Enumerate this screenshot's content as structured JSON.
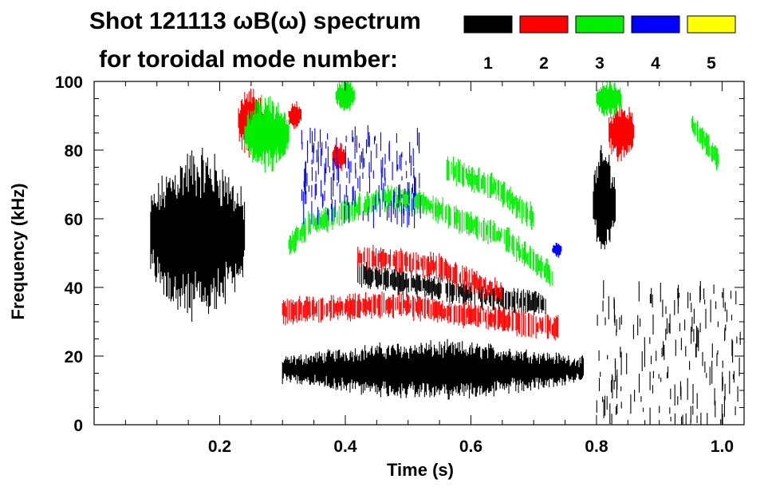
{
  "chart_data": {
    "type": "heatmap",
    "title_line1": "Shot 121113 ωB(ω) spectrum",
    "title_line2": "for toroidal mode number:",
    "xlabel": "Time (s)",
    "ylabel": "Frequency (kHz)",
    "xlim": [
      0.0,
      1.035
    ],
    "ylim": [
      0,
      100
    ],
    "x_ticks": [
      0.2,
      0.4,
      0.6,
      0.8,
      1.0
    ],
    "x_tick_labels": [
      "0.2",
      "0.4",
      "0.6",
      "0.8",
      "1.0"
    ],
    "y_ticks": [
      0,
      20,
      40,
      60,
      80,
      100
    ],
    "y_tick_labels": [
      "0",
      "20",
      "40",
      "60",
      "80",
      "100"
    ],
    "legend": [
      {
        "label": "1",
        "color": "#000000"
      },
      {
        "label": "2",
        "color": "#ff0000"
      },
      {
        "label": "3",
        "color": "#00ee00"
      },
      {
        "label": "4",
        "color": "#0000ff"
      },
      {
        "label": "5",
        "color": "#ffff00"
      }
    ],
    "features": [
      {
        "mode": "1",
        "kind": "blob",
        "t": [
          0.09,
          0.24
        ],
        "f_center": 55,
        "f_halfwidth": 22
      },
      {
        "mode": "1",
        "kind": "blob",
        "t": [
          0.3,
          0.78
        ],
        "f_center": 16,
        "f_halfwidth": 7
      },
      {
        "mode": "1",
        "kind": "band",
        "points": [
          [
            0.42,
            44
          ],
          [
            0.6,
            38
          ],
          [
            0.72,
            35
          ]
        ]
      },
      {
        "mode": "1",
        "kind": "blob",
        "t": [
          0.795,
          0.83
        ],
        "f_center": 65,
        "f_halfwidth": 14
      },
      {
        "mode": "1",
        "kind": "scatter",
        "t": [
          0.8,
          1.03
        ],
        "f": [
          0,
          40
        ]
      },
      {
        "mode": "2",
        "kind": "band",
        "points": [
          [
            0.42,
            49
          ],
          [
            0.55,
            46
          ],
          [
            0.65,
            38
          ]
        ]
      },
      {
        "mode": "2",
        "kind": "band",
        "points": [
          [
            0.3,
            33
          ],
          [
            0.48,
            35
          ],
          [
            0.6,
            32
          ],
          [
            0.74,
            28
          ]
        ]
      },
      {
        "mode": "2",
        "kind": "blob",
        "t": [
          0.23,
          0.27
        ],
        "f_center": 88,
        "f_halfwidth": 10
      },
      {
        "mode": "2",
        "kind": "blob",
        "t": [
          0.31,
          0.33
        ],
        "f_center": 90,
        "f_halfwidth": 4
      },
      {
        "mode": "2",
        "kind": "blob",
        "t": [
          0.38,
          0.4
        ],
        "f_center": 78,
        "f_halfwidth": 4
      },
      {
        "mode": "2",
        "kind": "blob",
        "t": [
          0.82,
          0.86
        ],
        "f_center": 85,
        "f_halfwidth": 8
      },
      {
        "mode": "3",
        "kind": "band",
        "points": [
          [
            0.31,
            52
          ],
          [
            0.34,
            58
          ],
          [
            0.46,
            66
          ],
          [
            0.52,
            65
          ],
          [
            0.58,
            60
          ],
          [
            0.65,
            55
          ],
          [
            0.73,
            43
          ]
        ]
      },
      {
        "mode": "3",
        "kind": "band",
        "points": [
          [
            0.56,
            75
          ],
          [
            0.64,
            69
          ],
          [
            0.7,
            60
          ]
        ]
      },
      {
        "mode": "3",
        "kind": "blob",
        "t": [
          0.385,
          0.415
        ],
        "f_center": 96,
        "f_halfwidth": 5
      },
      {
        "mode": "3",
        "kind": "blob",
        "t": [
          0.24,
          0.31
        ],
        "f_center": 85,
        "f_halfwidth": 10
      },
      {
        "mode": "3",
        "kind": "blob",
        "t": [
          0.8,
          0.84
        ],
        "f_center": 95,
        "f_halfwidth": 5
      },
      {
        "mode": "3",
        "kind": "band",
        "points": [
          [
            0.95,
            88
          ],
          [
            0.995,
            77
          ]
        ]
      },
      {
        "mode": "4",
        "kind": "scatter",
        "t": [
          0.33,
          0.52
        ],
        "f": [
          60,
          85
        ]
      },
      {
        "mode": "4",
        "kind": "blob",
        "t": [
          0.73,
          0.745
        ],
        "f_center": 51,
        "f_halfwidth": 2
      }
    ]
  }
}
